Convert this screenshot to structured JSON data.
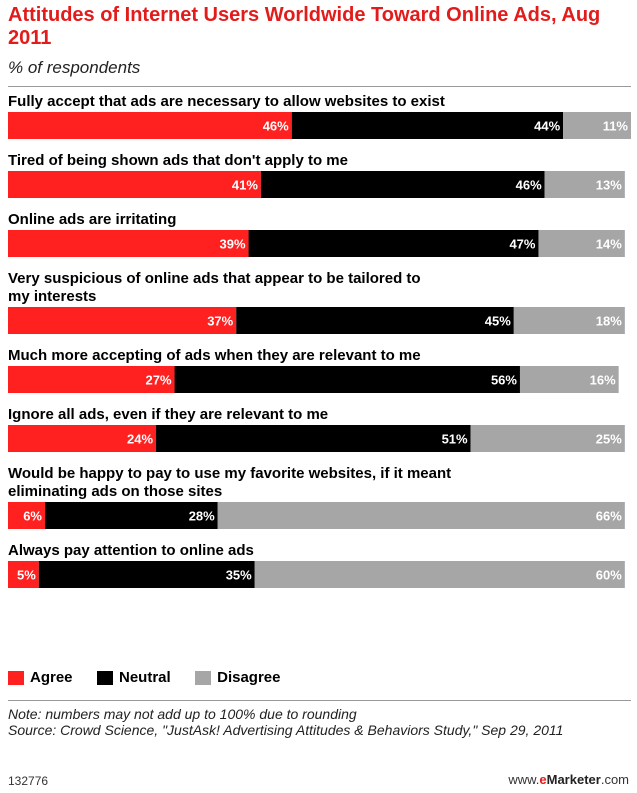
{
  "header": {
    "title": "Attitudes of Internet Users Worldwide Toward Online Ads, Aug 2011",
    "subtitle": "% of respondents"
  },
  "chart_data": {
    "type": "bar",
    "stacked": true,
    "orientation": "horizontal",
    "categories": [
      "Fully accept that ads are necessary to allow websites to exist",
      "Tired of being shown ads that don't apply to me",
      "Online ads are irritating",
      "Very suspicious of online ads that appear to be tailored to my interests",
      "Much more accepting of ads when they are relevant to me",
      "Ignore all ads, even if they are relevant to me",
      "Would be happy to pay to use my favorite websites, if it meant eliminating ads on those sites",
      "Always pay attention to online ads"
    ],
    "series": [
      {
        "name": "Agree",
        "color": "#ff2020",
        "values": [
          46,
          41,
          39,
          37,
          27,
          24,
          6,
          5
        ]
      },
      {
        "name": "Neutral",
        "color": "#000000",
        "values": [
          44,
          46,
          47,
          45,
          56,
          51,
          28,
          35
        ]
      },
      {
        "name": "Disagree",
        "color": "#a6a6a6",
        "values": [
          11,
          13,
          14,
          18,
          16,
          25,
          66,
          60
        ]
      }
    ],
    "value_suffix": "%",
    "xlim": [
      0,
      101
    ],
    "legend_position": "bottom-left"
  },
  "legend": [
    {
      "label": "Agree",
      "color": "#ff2020"
    },
    {
      "label": "Neutral",
      "color": "#000000"
    },
    {
      "label": "Disagree",
      "color": "#a6a6a6"
    }
  ],
  "footer": {
    "note": "Note: numbers may not add up to 100% due to rounding",
    "source": "Source: Crowd Science, \"JustAsk! Advertising Attitudes & Behaviors Study,\" Sep 29, 2011",
    "id": "132776",
    "brand_prefix": "www.",
    "brand_e": "e",
    "brand_name": "Marketer",
    "brand_suffix": ".com"
  }
}
